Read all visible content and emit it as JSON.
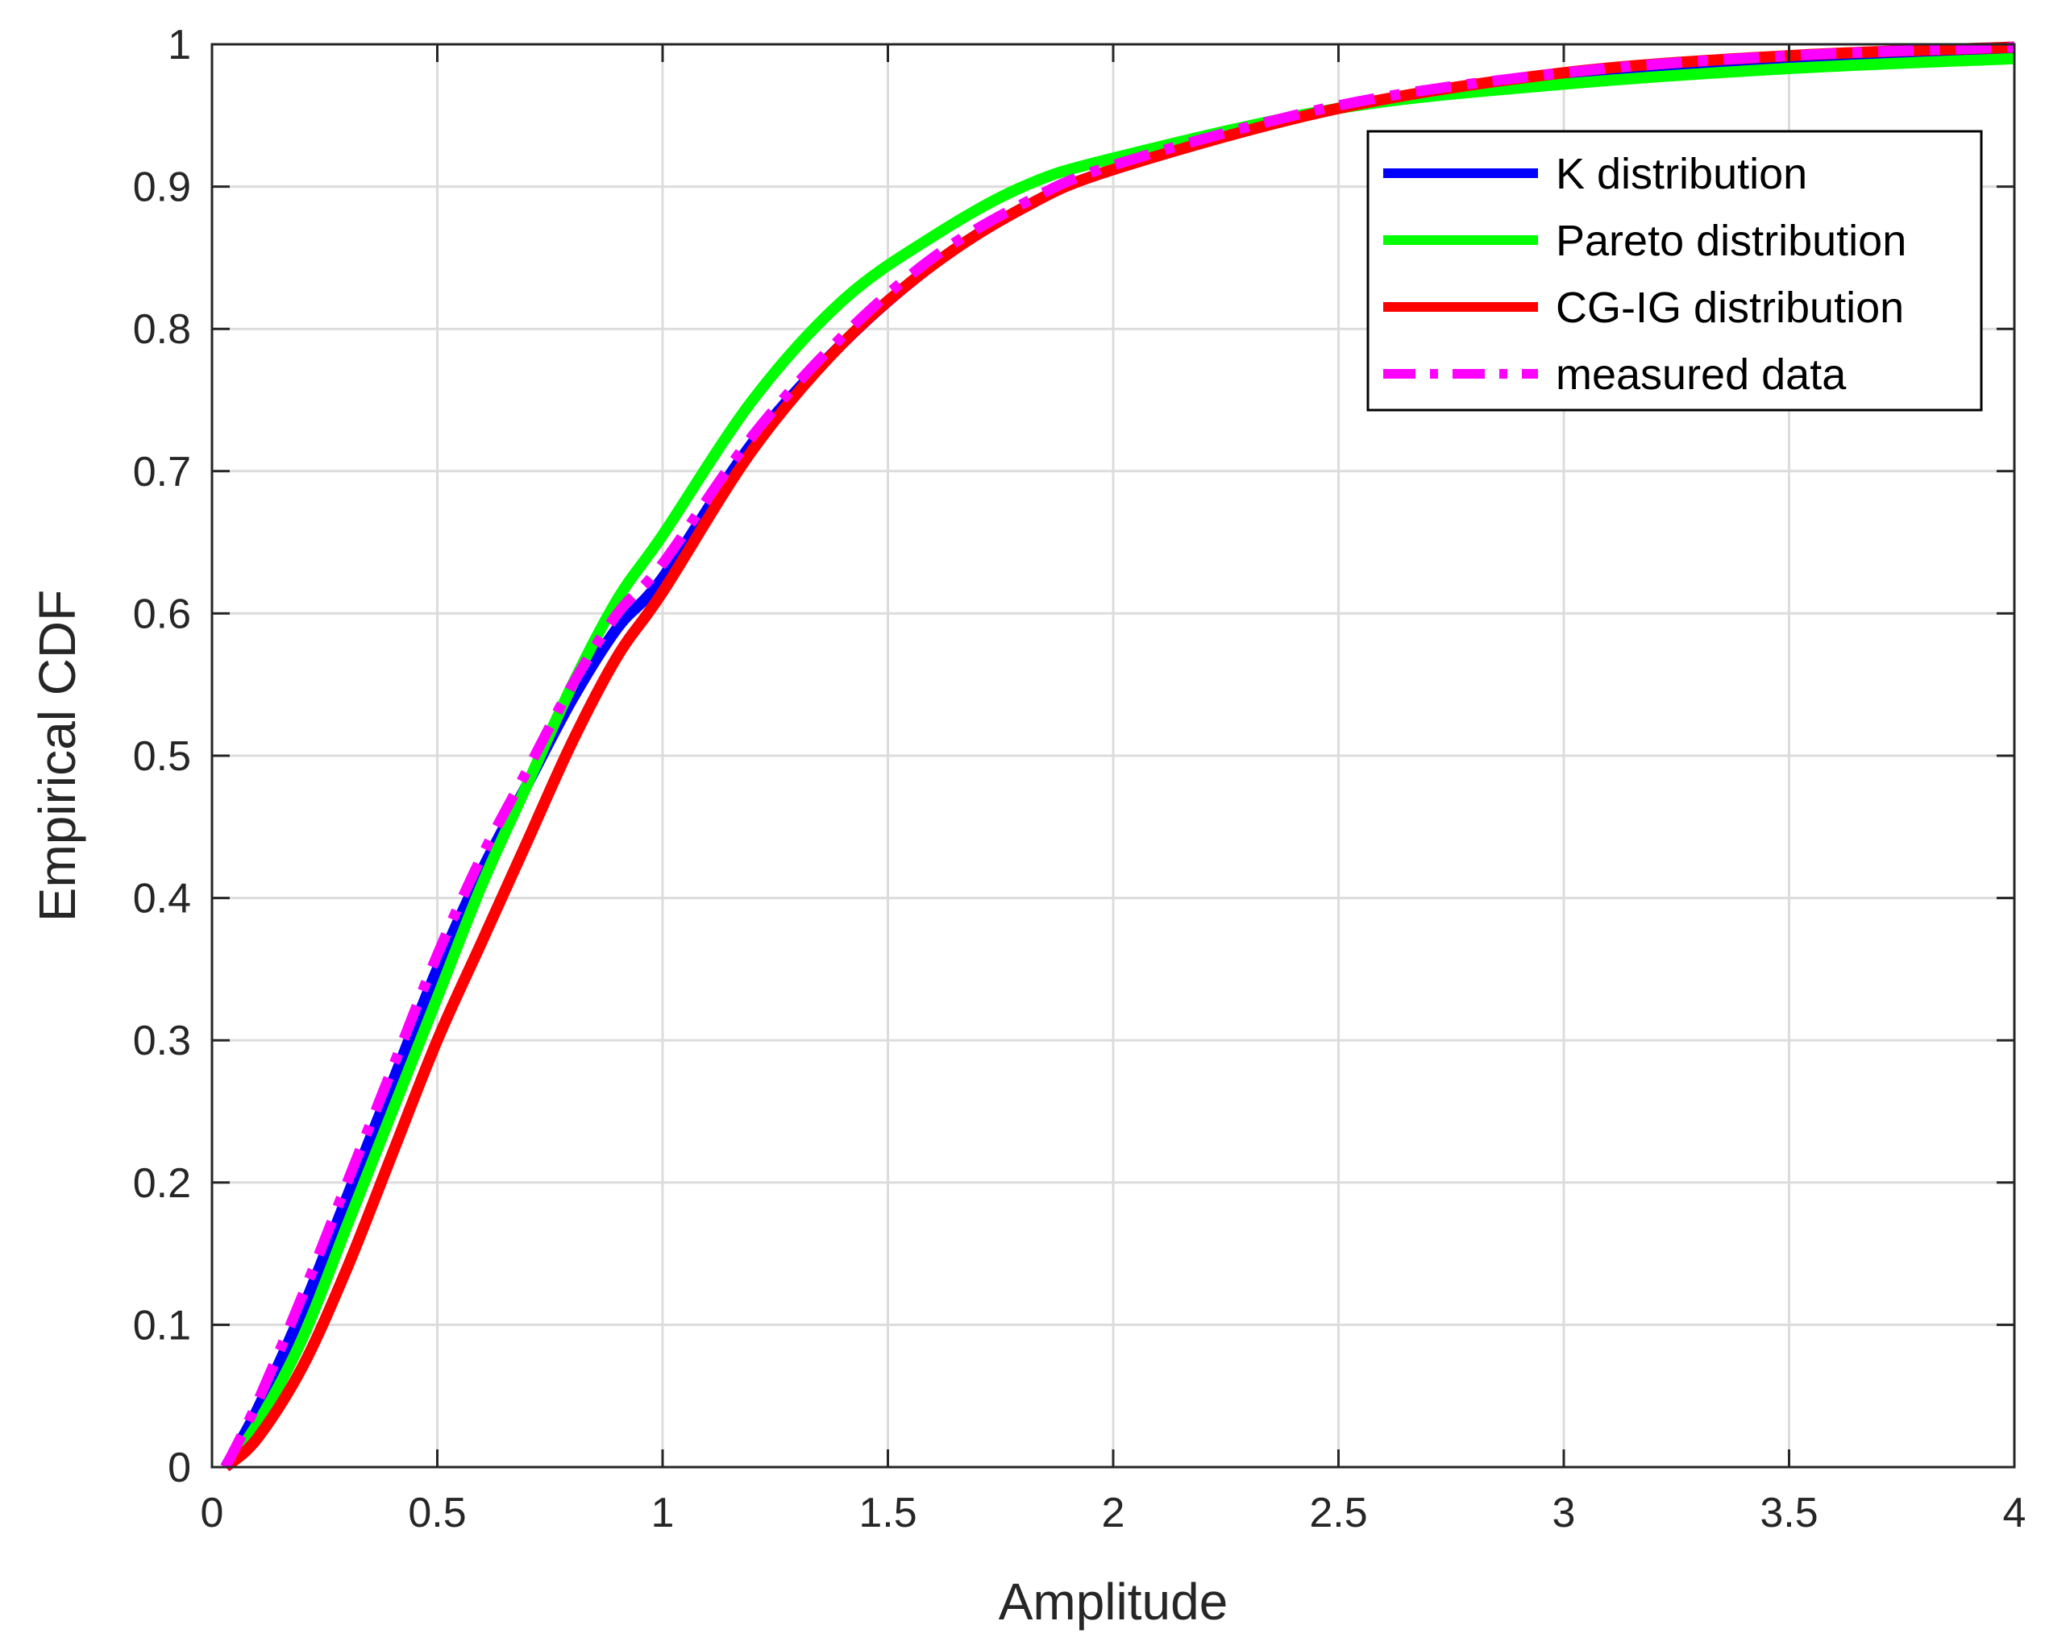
{
  "chart_data": {
    "type": "line",
    "xlabel": "Amplitude",
    "ylabel": "Empirical CDF",
    "xlim": [
      0,
      4
    ],
    "ylim": [
      0,
      1
    ],
    "xticks": [
      0,
      0.5,
      1,
      1.5,
      2,
      2.5,
      3,
      3.5,
      4
    ],
    "xtick_labels": [
      "0",
      "0.5",
      "1",
      "1.5",
      "2",
      "2.5",
      "3",
      "3.5",
      "4"
    ],
    "yticks": [
      0,
      0.1,
      0.2,
      0.3,
      0.4,
      0.5,
      0.6,
      0.7,
      0.8,
      0.9,
      1
    ],
    "ytick_labels": [
      "0",
      "0.1",
      "0.2",
      "0.3",
      "0.4",
      "0.5",
      "0.6",
      "0.7",
      "0.8",
      "0.9",
      "1"
    ],
    "grid": true,
    "legend_position": "top-right",
    "series": [
      {
        "name": "K distribution",
        "color": "#0000ff",
        "style": "solid",
        "x": [
          0.03,
          0.1,
          0.2,
          0.3,
          0.4,
          0.5,
          0.6,
          0.7,
          0.8,
          0.9,
          1.0,
          1.2,
          1.4,
          1.6,
          1.8,
          2.0,
          2.5,
          3.0,
          3.5,
          4.0
        ],
        "y": [
          0.0,
          0.04,
          0.11,
          0.19,
          0.27,
          0.35,
          0.42,
          0.48,
          0.54,
          0.59,
          0.625,
          0.72,
          0.79,
          0.845,
          0.885,
          0.912,
          0.955,
          0.978,
          0.99,
          0.997
        ]
      },
      {
        "name": "Pareto distribution",
        "color": "#00ff00",
        "style": "solid",
        "x": [
          0.03,
          0.1,
          0.2,
          0.3,
          0.4,
          0.5,
          0.6,
          0.7,
          0.8,
          0.9,
          1.0,
          1.2,
          1.4,
          1.6,
          1.8,
          2.0,
          2.5,
          3.0,
          3.5,
          4.0
        ],
        "y": [
          0.0,
          0.03,
          0.09,
          0.17,
          0.25,
          0.33,
          0.41,
          0.48,
          0.55,
          0.61,
          0.655,
          0.75,
          0.82,
          0.865,
          0.9,
          0.92,
          0.955,
          0.972,
          0.983,
          0.99
        ]
      },
      {
        "name": "CG-IG distribution",
        "color": "#ff0000",
        "style": "solid",
        "x": [
          0.03,
          0.1,
          0.2,
          0.3,
          0.4,
          0.5,
          0.6,
          0.7,
          0.8,
          0.9,
          1.0,
          1.2,
          1.4,
          1.6,
          1.8,
          2.0,
          2.5,
          3.0,
          3.5,
          4.0
        ],
        "y": [
          0.0,
          0.02,
          0.07,
          0.14,
          0.22,
          0.3,
          0.37,
          0.44,
          0.51,
          0.57,
          0.615,
          0.715,
          0.79,
          0.845,
          0.885,
          0.912,
          0.955,
          0.98,
          0.992,
          0.998
        ]
      },
      {
        "name": "measured data",
        "color": "#ff00ff",
        "style": "dashdot",
        "x": [
          0.03,
          0.1,
          0.2,
          0.3,
          0.4,
          0.5,
          0.6,
          0.7,
          0.8,
          0.9,
          1.0,
          1.2,
          1.4,
          1.6,
          1.8,
          2.0,
          2.5,
          3.0,
          3.5,
          4.0
        ],
        "y": [
          0.0,
          0.045,
          0.12,
          0.2,
          0.28,
          0.36,
          0.43,
          0.49,
          0.55,
          0.6,
          0.635,
          0.725,
          0.795,
          0.85,
          0.888,
          0.915,
          0.957,
          0.98,
          0.992,
          0.998
        ]
      }
    ]
  }
}
